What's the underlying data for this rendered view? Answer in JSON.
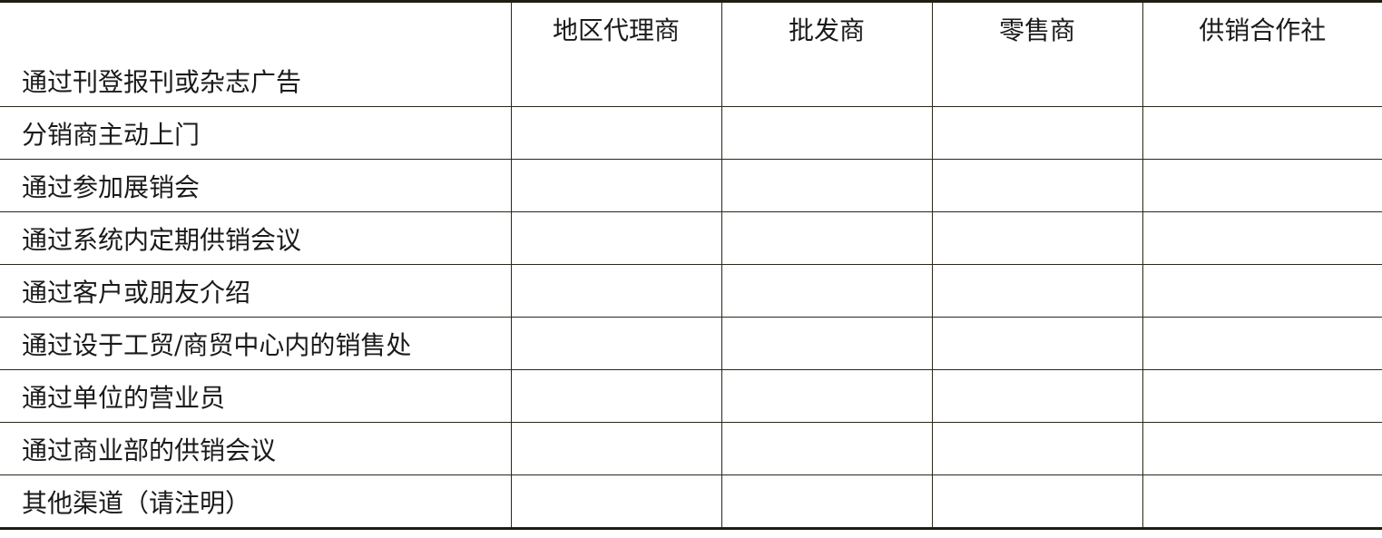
{
  "table": {
    "headers": [
      "",
      "地区代理商",
      "批发商",
      "零售商",
      "供销合作社"
    ],
    "rows": [
      "通过刊登报刊或杂志广告",
      "分销商主动上门",
      "通过参加展销会",
      "通过系统内定期供销会议",
      "通过客户或朋友介绍",
      "通过设于工贸/商贸中心内的销售处",
      "通过单位的营业员",
      "通过商业部的供销会议",
      "其他渠道（请注明）"
    ]
  }
}
